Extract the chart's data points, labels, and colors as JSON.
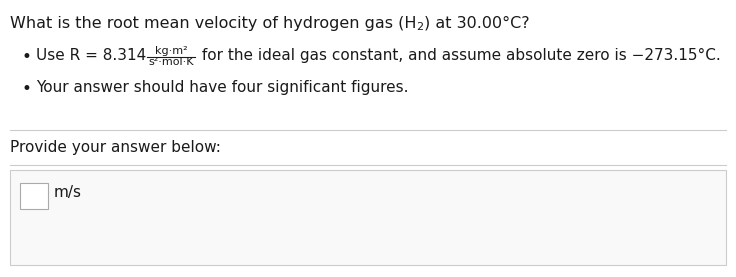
{
  "title_part1": "What is the root mean velocity of hydrogen gas (H",
  "title_sub": "2",
  "title_part2": ") at 30.00°C?",
  "bullet1_pre": "Use R = 8.314",
  "bullet1_num": "kg·m²",
  "bullet1_den": "s²·mol·K",
  "bullet1_suf": " for the ideal gas constant, and assume absolute zero is −273.15°C.",
  "bullet2": "Your answer should have four significant figures.",
  "provide_text": "Provide your answer below:",
  "unit_text": "m/s",
  "bg_color": "#ffffff",
  "text_color": "#1a1a1a",
  "sep_color": "#cccccc",
  "box_bg": "#f9f9f9",
  "box_edge": "#cccccc",
  "input_bg": "#ffffff",
  "input_edge": "#aaaaaa",
  "font_size_title": 11.5,
  "font_size_body": 11.0,
  "font_size_small": 8.0
}
